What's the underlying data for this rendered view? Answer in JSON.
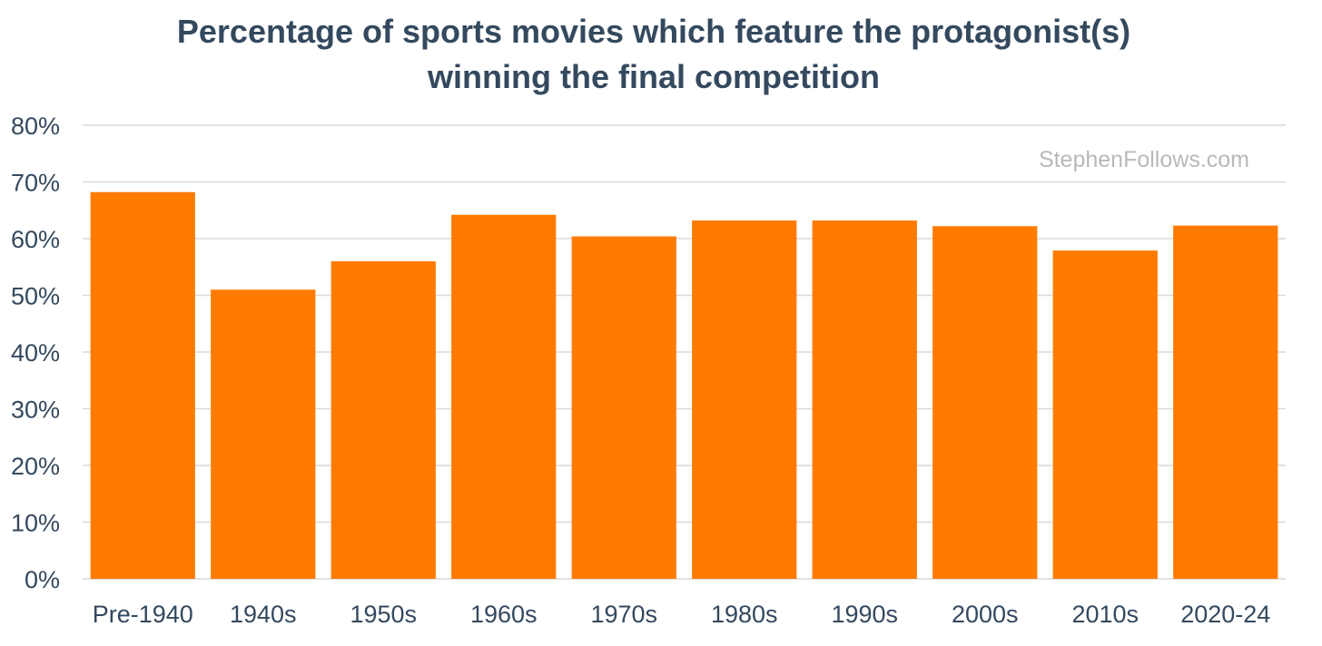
{
  "chart_data": {
    "type": "bar",
    "title_lines": [
      "Percentage of sports movies which feature the protagonist(s)",
      "winning the final competition"
    ],
    "categories": [
      "Pre-1940",
      "1940s",
      "1950s",
      "1960s",
      "1970s",
      "1980s",
      "1990s",
      "2000s",
      "2010s",
      "2020-24"
    ],
    "values": [
      68.2,
      51.0,
      56.0,
      64.2,
      60.4,
      63.2,
      63.2,
      62.2,
      57.9,
      62.3
    ],
    "ylim": [
      0,
      80
    ],
    "yticks": [
      0,
      10,
      20,
      30,
      40,
      50,
      60,
      70,
      80
    ],
    "ytick_labels": [
      "0%",
      "10%",
      "20%",
      "30%",
      "40%",
      "50%",
      "60%",
      "70%",
      "80%"
    ],
    "xlabel": "",
    "ylabel": "",
    "grid": true,
    "bar_color": "#ff7b00",
    "grid_color": "#d9d9d9",
    "watermark": "StephenFollows.com"
  }
}
